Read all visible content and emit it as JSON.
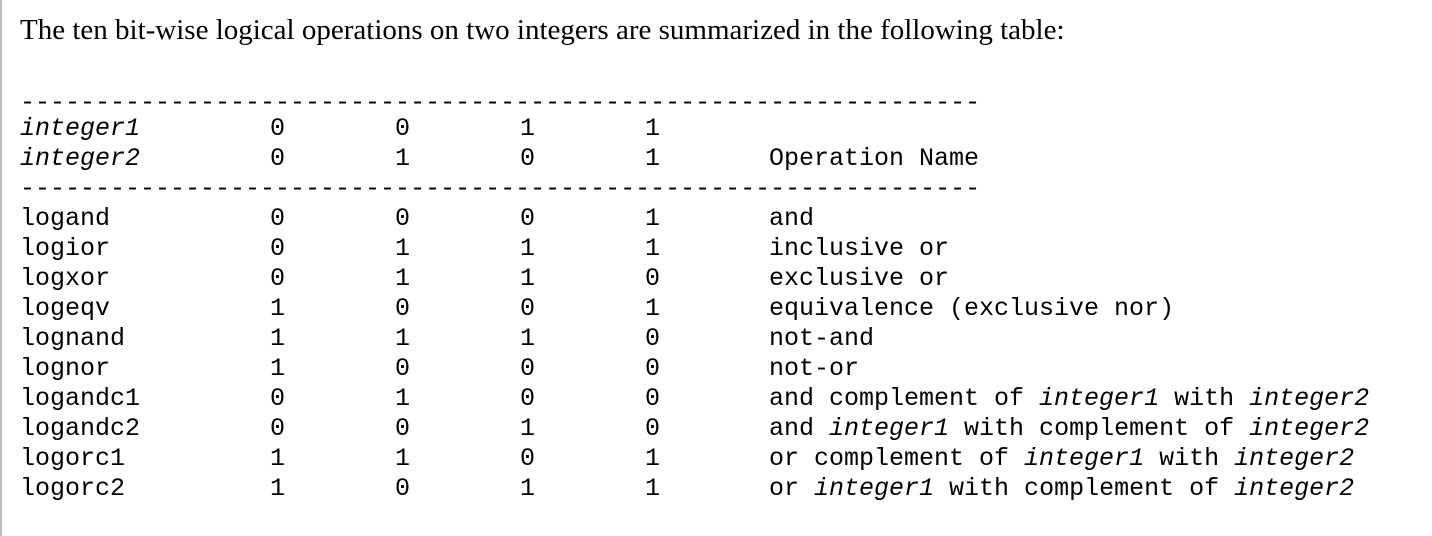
{
  "intro": "The ten bit-wise logical operations on two integers are summarized in the following table:",
  "rule": "----------------------------------------------------------------",
  "header": {
    "row1": {
      "label": "integer1",
      "values": [
        "0",
        "0",
        "1",
        "1"
      ]
    },
    "row2": {
      "label": "integer2",
      "values": [
        "0",
        "1",
        "0",
        "1"
      ],
      "op_heading": "Operation Name"
    }
  },
  "rows": [
    {
      "name": "logand",
      "values": [
        "0",
        "0",
        "0",
        "1"
      ],
      "op": [
        {
          "t": "and",
          "i": false
        }
      ]
    },
    {
      "name": "logior",
      "values": [
        "0",
        "1",
        "1",
        "1"
      ],
      "op": [
        {
          "t": "inclusive or",
          "i": false
        }
      ]
    },
    {
      "name": "logxor",
      "values": [
        "0",
        "1",
        "1",
        "0"
      ],
      "op": [
        {
          "t": "exclusive or",
          "i": false
        }
      ]
    },
    {
      "name": "logeqv",
      "values": [
        "1",
        "0",
        "0",
        "1"
      ],
      "op": [
        {
          "t": "equivalence (exclusive nor)",
          "i": false
        }
      ]
    },
    {
      "name": "lognand",
      "values": [
        "1",
        "1",
        "1",
        "0"
      ],
      "op": [
        {
          "t": "not-and",
          "i": false
        }
      ]
    },
    {
      "name": "lognor",
      "values": [
        "1",
        "0",
        "0",
        "0"
      ],
      "op": [
        {
          "t": "not-or",
          "i": false
        }
      ]
    },
    {
      "name": "logandc1",
      "values": [
        "0",
        "1",
        "0",
        "0"
      ],
      "op": [
        {
          "t": "and complement of ",
          "i": false
        },
        {
          "t": "integer1",
          "i": true
        },
        {
          "t": " with ",
          "i": false
        },
        {
          "t": "integer2",
          "i": true
        }
      ]
    },
    {
      "name": "logandc2",
      "values": [
        "0",
        "0",
        "1",
        "0"
      ],
      "op": [
        {
          "t": "and ",
          "i": false
        },
        {
          "t": "integer1",
          "i": true
        },
        {
          "t": " with complement of ",
          "i": false
        },
        {
          "t": "integer2",
          "i": true
        }
      ]
    },
    {
      "name": "logorc1",
      "values": [
        "1",
        "1",
        "0",
        "1"
      ],
      "op": [
        {
          "t": "or complement of ",
          "i": false
        },
        {
          "t": "integer1",
          "i": true
        },
        {
          "t": " with ",
          "i": false
        },
        {
          "t": "integer2",
          "i": true
        }
      ]
    },
    {
      "name": "logorc2",
      "values": [
        "1",
        "0",
        "1",
        "1"
      ],
      "op": [
        {
          "t": "or ",
          "i": false
        },
        {
          "t": "integer1",
          "i": true
        },
        {
          "t": " with complement of ",
          "i": false
        },
        {
          "t": "integer2",
          "i": true
        }
      ]
    }
  ]
}
